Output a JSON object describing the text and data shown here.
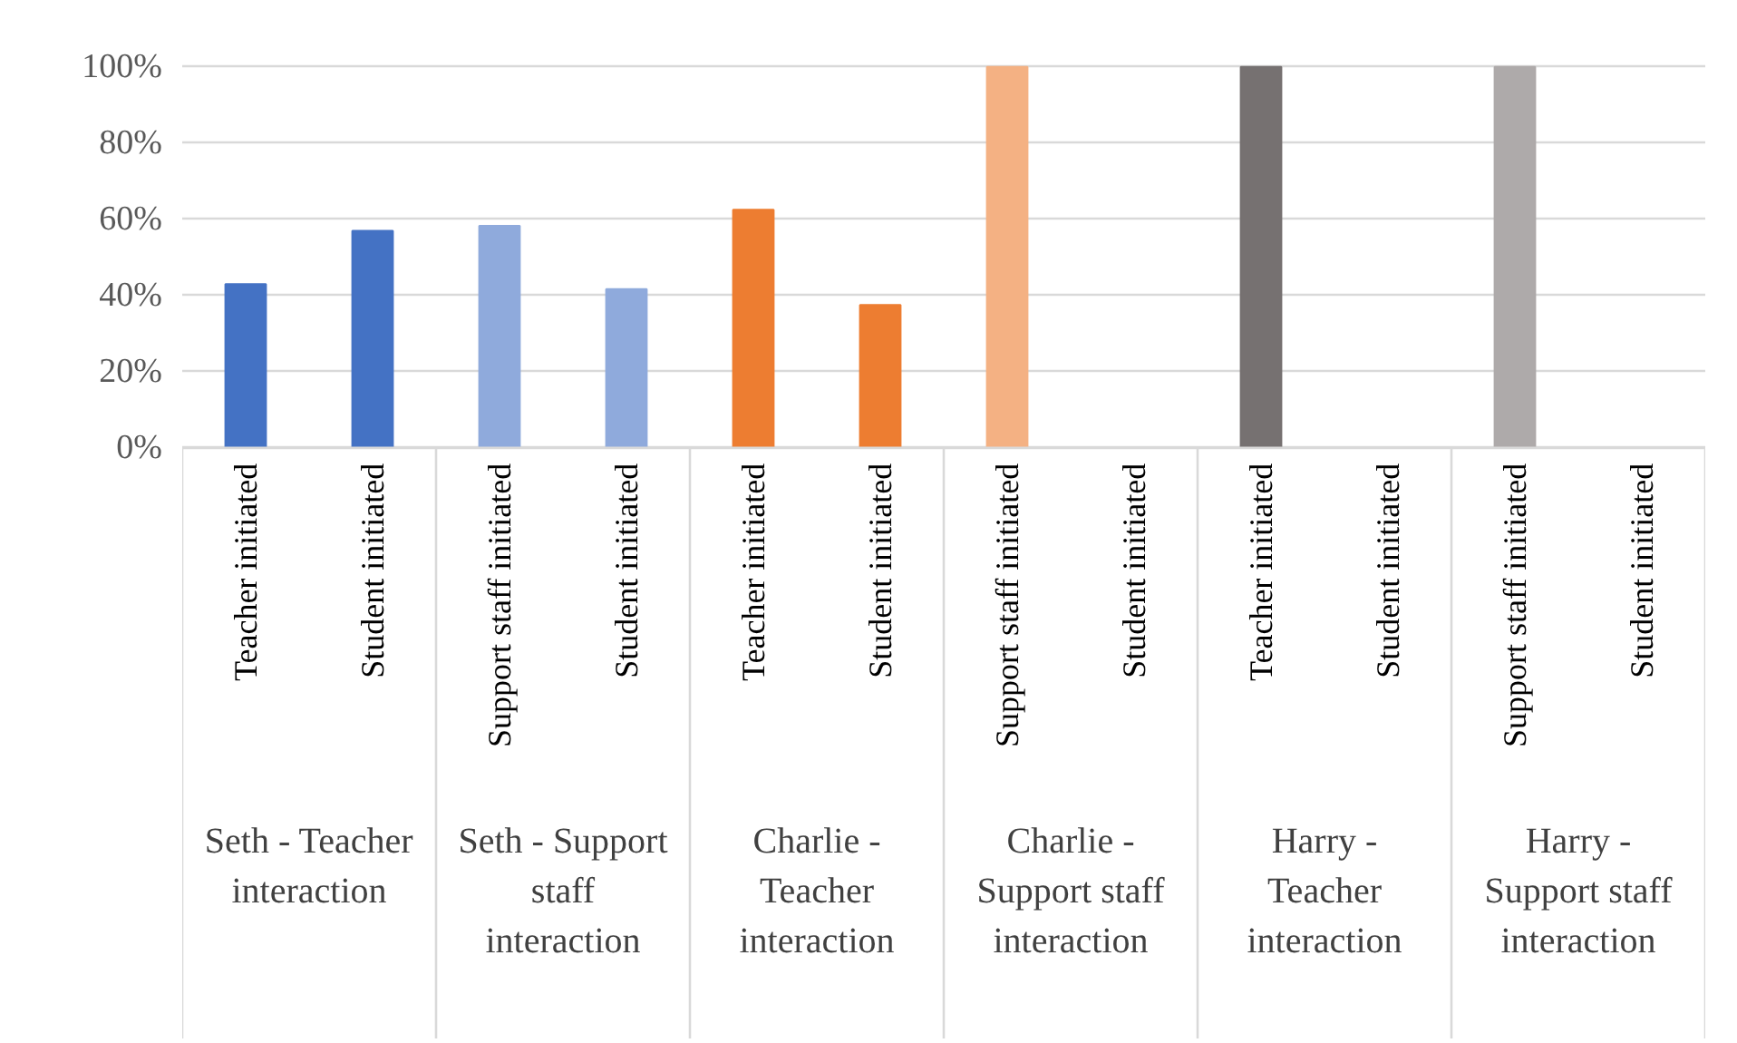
{
  "chart_data": {
    "type": "bar",
    "categories": [
      "Teacher initiated",
      "Student initiated",
      "Support staff initiated",
      "Student initiated",
      "Teacher initiated",
      "Student initiated",
      "Support staff initiated",
      "Student initiated",
      "Teacher initiated",
      "Student initiated",
      "Support staff initiated",
      "Student initiated"
    ],
    "values": [
      43,
      57,
      58.3,
      41.7,
      62.5,
      37.5,
      100,
      0,
      100,
      0,
      100,
      0
    ],
    "colors": [
      "#4472c4",
      "#4472c4",
      "#8faadc",
      "#8faadc",
      "#ed7d31",
      "#ed7d31",
      "#f4b183",
      "#f4b183",
      "#767171",
      "#767171",
      "#aeaaaa",
      "#aeaaaa"
    ],
    "annotations": [
      "Seth - Teacher interaction",
      "Seth - Support staff interaction",
      "Charlie - Teacher interaction",
      "Charlie - Support staff interaction",
      "Harry - Teacher interaction",
      "Harry - Support staff interaction"
    ],
    "ylim": [
      0,
      100
    ],
    "yticks": [
      {
        "value": 0,
        "label": "0%"
      },
      {
        "value": 20,
        "label": "20%"
      },
      {
        "value": 40,
        "label": "40%"
      },
      {
        "value": 60,
        "label": "60%"
      },
      {
        "value": 80,
        "label": "80%"
      },
      {
        "value": 100,
        "label": "100%"
      }
    ],
    "grid": "y"
  }
}
